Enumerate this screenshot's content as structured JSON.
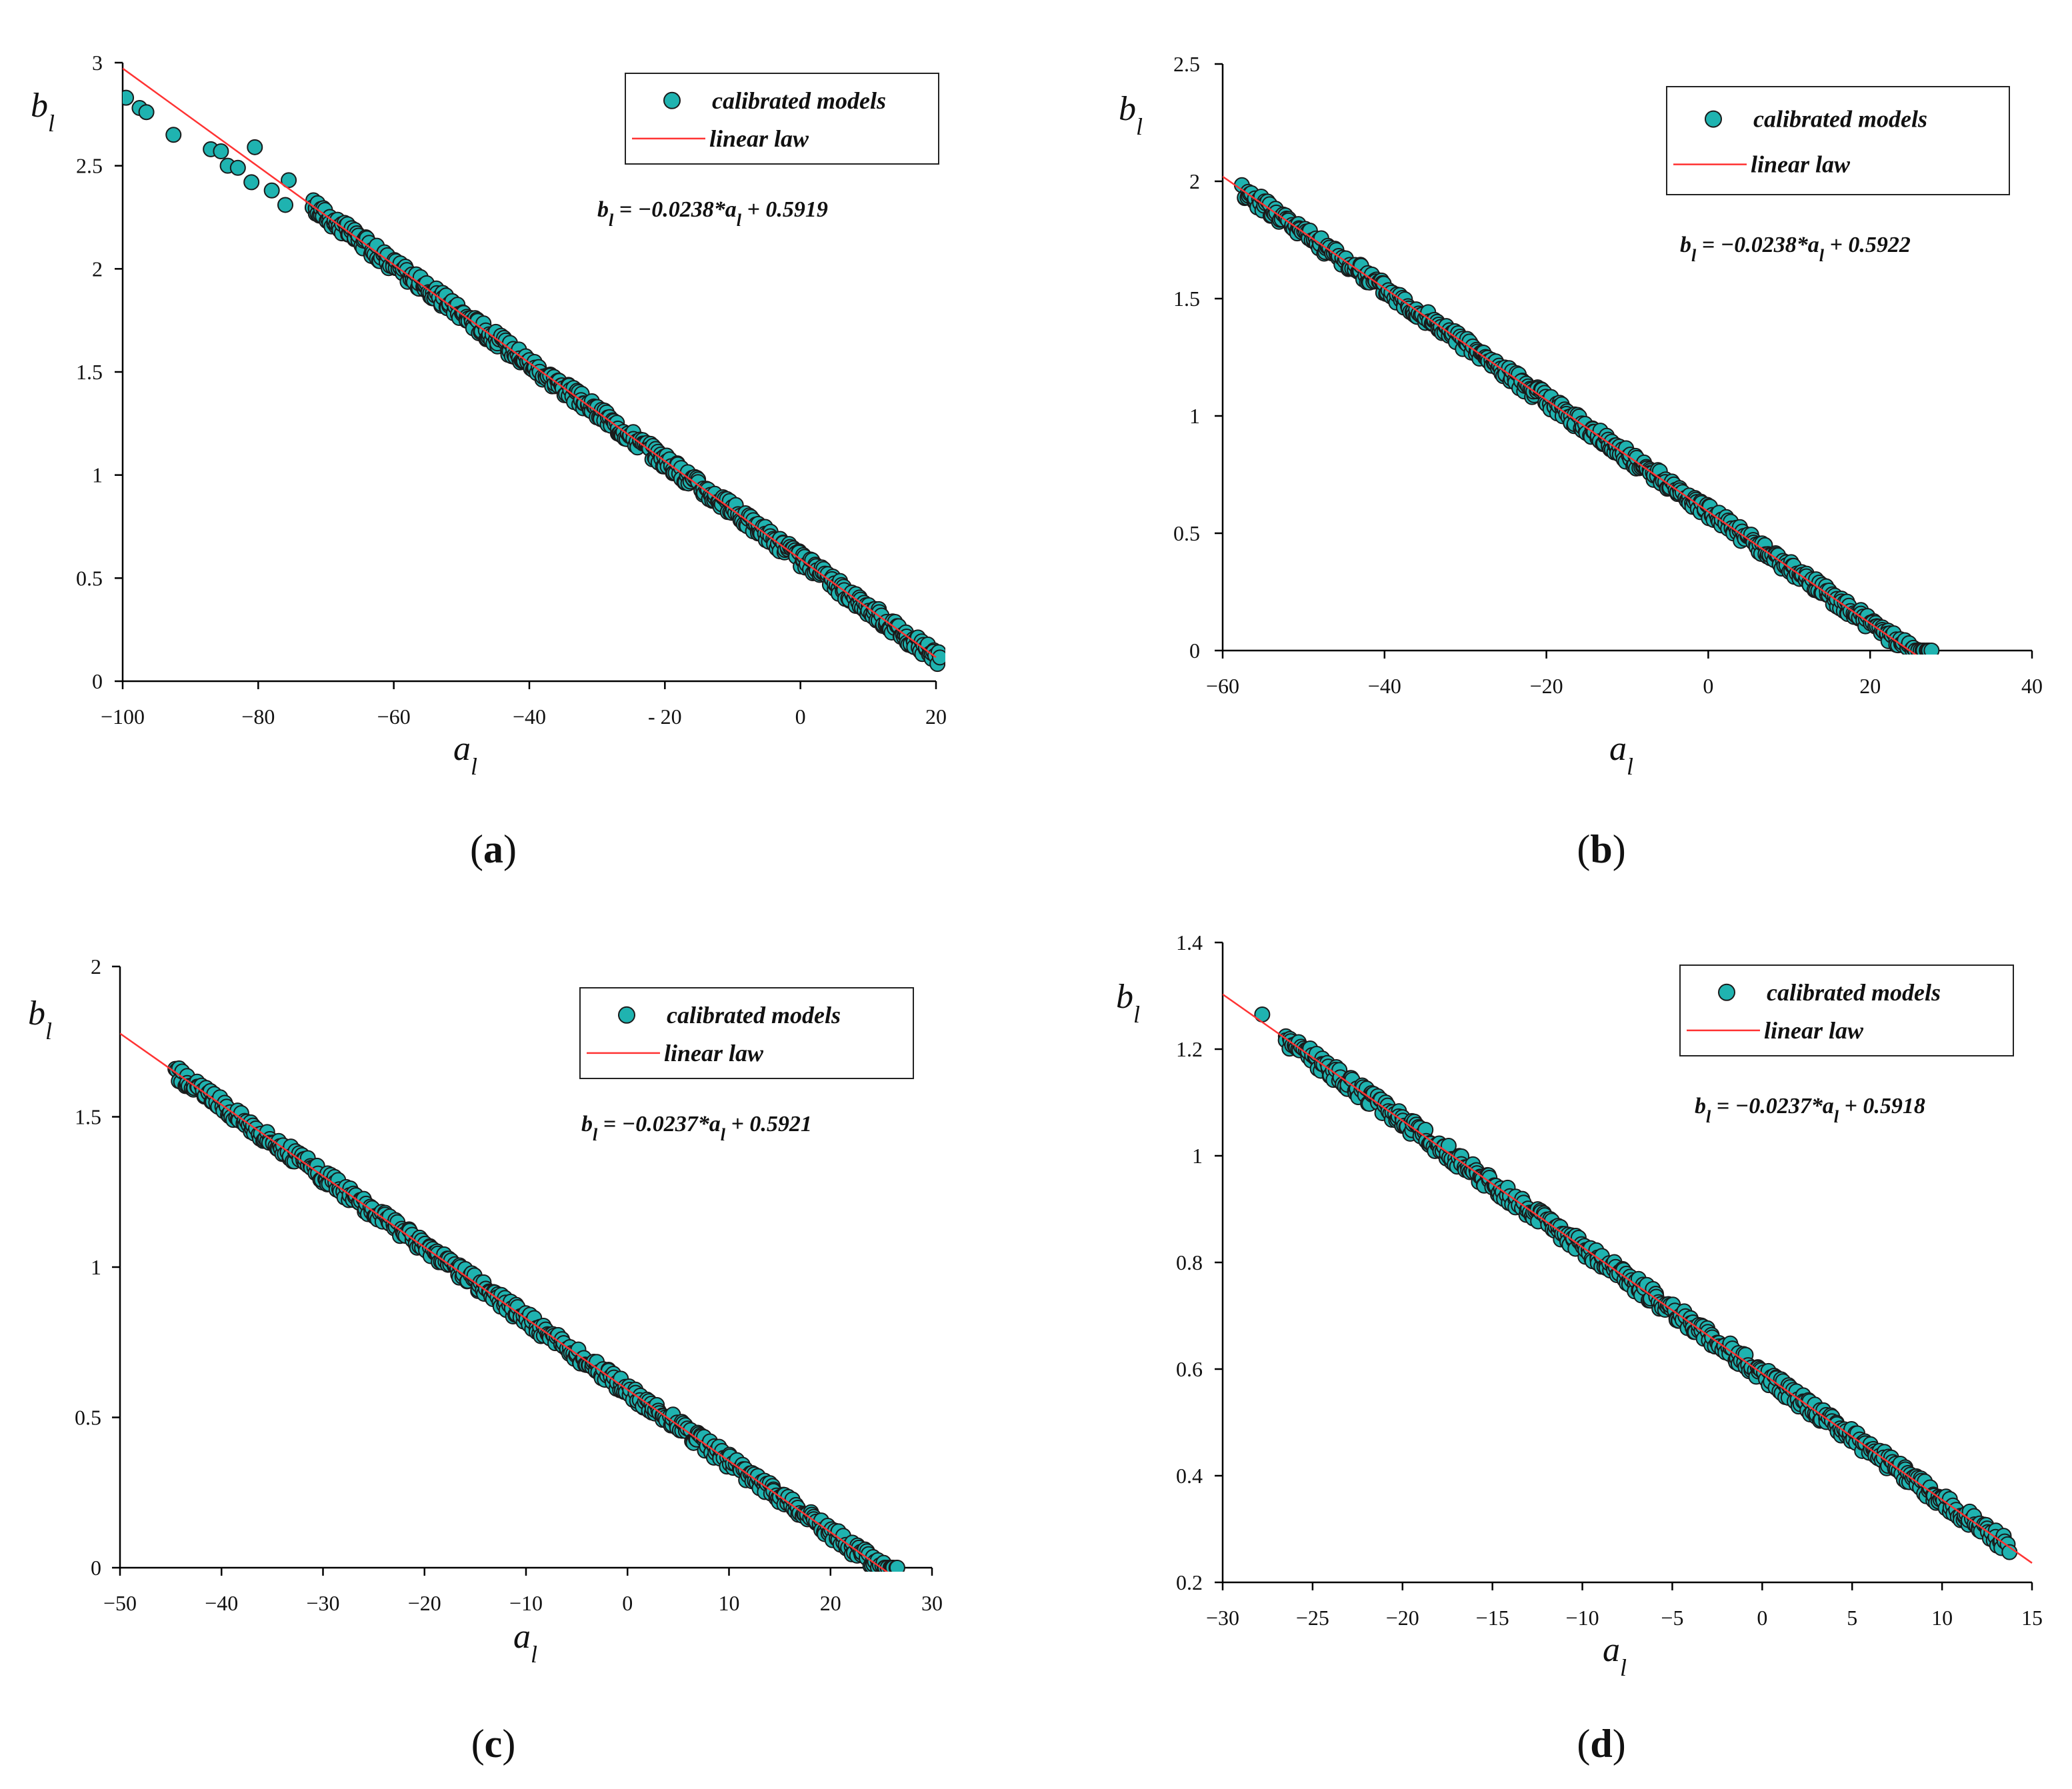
{
  "colors": {
    "marker_fill": "#1fb3b0",
    "marker_edge": "#1a1a1a",
    "line": "#ff3333",
    "axis": "#000000"
  },
  "chart_data": [
    {
      "id": "a",
      "type": "scatter",
      "caption": "a",
      "xlabel": "a",
      "xlabel_sub": "l",
      "ylabel": "b",
      "ylabel_sub": "l",
      "xlim": [
        -100,
        20
      ],
      "ylim": [
        0,
        3
      ],
      "xticks": [
        -100,
        -80,
        -60,
        -40,
        -20,
        0,
        20
      ],
      "xtick_labels": [
        "−100",
        "−80",
        "−60",
        "−40",
        "- 20",
        "0",
        "20"
      ],
      "yticks": [
        0,
        0.5,
        1,
        1.5,
        2,
        2.5,
        3
      ],
      "ytick_labels": [
        "0",
        "0.5",
        "1",
        "1.5",
        "2",
        "2.5",
        "3"
      ],
      "legend": {
        "scatter": "calibrated models",
        "line": "linear law",
        "italic": false
      },
      "equation": {
        "slope": -0.0238,
        "intercept": 0.5919,
        "text_prefix": "b",
        "text_sub": "l",
        "text_mid": " = −0.0238*a",
        "text_mid_sub": "l",
        "text_end": " + 0.5919"
      },
      "scatter_range": [
        -72,
        20.5
      ],
      "outliers": [
        [
          -99.5,
          2.83
        ],
        [
          -97.5,
          2.78
        ],
        [
          -96.5,
          2.76
        ],
        [
          -92.5,
          2.65
        ],
        [
          -87,
          2.58
        ],
        [
          -85.5,
          2.57
        ],
        [
          -84.5,
          2.5
        ],
        [
          -83,
          2.49
        ],
        [
          -81,
          2.42
        ],
        [
          -80.5,
          2.59
        ],
        [
          -75.5,
          2.43
        ],
        [
          -78,
          2.38
        ],
        [
          -76,
          2.31
        ]
      ]
    },
    {
      "id": "b",
      "type": "scatter",
      "caption": "b",
      "xlabel": "a",
      "xlabel_sub": "l",
      "ylabel": "b",
      "ylabel_sub": "l",
      "xlim": [
        -60,
        40
      ],
      "ylim": [
        0,
        2.5
      ],
      "xticks": [
        -60,
        -40,
        -20,
        0,
        20,
        40
      ],
      "xtick_labels": [
        "−60",
        "−40",
        "−20",
        "0",
        "20",
        "40"
      ],
      "yticks": [
        0,
        0.5,
        1,
        1.5,
        2,
        2.5
      ],
      "ytick_labels": [
        "0",
        "0.5",
        "1",
        "1.5",
        "2",
        "2.5"
      ],
      "legend": {
        "scatter": "calibrated models",
        "line": "linear law",
        "italic": true
      },
      "equation": {
        "slope": -0.0238,
        "intercept": 0.5922,
        "text_prefix": "b",
        "text_sub": "l",
        "text_mid": " = −0.0238*a",
        "text_mid_sub": "l",
        "text_end": " + 0.5922"
      },
      "scatter_range": [
        -57.5,
        27.5
      ],
      "outliers": []
    },
    {
      "id": "c",
      "type": "scatter",
      "caption": "c",
      "xlabel": "a",
      "xlabel_sub": "l",
      "ylabel": "b",
      "ylabel_sub": "l",
      "xlim": [
        -50,
        30
      ],
      "ylim": [
        0,
        2
      ],
      "xticks": [
        -50,
        -40,
        -30,
        -20,
        -10,
        0,
        10,
        20,
        30
      ],
      "xtick_labels": [
        "−50",
        "−40",
        "−30",
        "−20",
        "−10",
        "0",
        "10",
        "20",
        "30"
      ],
      "yticks": [
        0,
        0.5,
        1,
        1.5,
        2
      ],
      "ytick_labels": [
        "0",
        "0.5",
        "1",
        "1.5",
        "2"
      ],
      "legend": {
        "scatter": "calibrated models",
        "line": "linear law",
        "italic": true
      },
      "equation": {
        "slope": -0.0237,
        "intercept": 0.5921,
        "text_prefix": "b",
        "text_sub": "l",
        "text_mid": " = −0.0237*a",
        "text_mid_sub": "l",
        "text_end": " + 0.5921"
      },
      "scatter_range": [
        -44.5,
        26.5
      ],
      "outliers": []
    },
    {
      "id": "d",
      "type": "scatter",
      "caption": "d",
      "xlabel": "a",
      "xlabel_sub": "l",
      "ylabel": "b",
      "ylabel_sub": "l",
      "xlim": [
        -30,
        15
      ],
      "ylim": [
        0.2,
        1.4
      ],
      "xticks": [
        -30,
        -25,
        -20,
        -15,
        -10,
        -5,
        0,
        5,
        10,
        15
      ],
      "xtick_labels": [
        "−30",
        "−25",
        "−20",
        "−15",
        "−10",
        "−5",
        "0",
        "5",
        "10",
        "15"
      ],
      "yticks": [
        0.2,
        0.4,
        0.6,
        0.8,
        1,
        1.2,
        1.4
      ],
      "ytick_labels": [
        "0.2",
        "0.4",
        "0.6",
        "0.8",
        "1",
        "1.2",
        "1.4"
      ],
      "legend": {
        "scatter": "calibrated models",
        "line": "linear law",
        "italic": true
      },
      "equation": {
        "slope": -0.0237,
        "intercept": 0.5918,
        "text_prefix": "b",
        "text_sub": "l",
        "text_mid": " = −0.0237*a",
        "text_mid_sub": "l",
        "text_end": " + 0.5918"
      },
      "scatter_range": [
        -26.5,
        13.7
      ],
      "outliers": [
        [
          -27.8,
          1.265
        ]
      ]
    }
  ]
}
